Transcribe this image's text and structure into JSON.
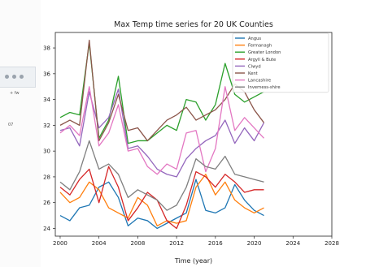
{
  "sidebar": {
    "label_1": "+ fw",
    "label_2": "07"
  },
  "chart_data": {
    "type": "line",
    "title": "Max Temp time series for 20 UK Counties",
    "xlabel": "Time (year)",
    "ylabel": "",
    "xlim": [
      1999.5,
      2028
    ],
    "ylim": [
      23.4,
      39.2
    ],
    "xticks": [
      2000,
      2004,
      2008,
      2012,
      2016,
      2020,
      2024,
      2028
    ],
    "yticks": [
      24,
      26,
      28,
      30,
      32,
      34,
      36,
      38
    ],
    "x": [
      2000,
      2001,
      2002,
      2003,
      2004,
      2005,
      2006,
      2007,
      2008,
      2009,
      2010,
      2011,
      2012,
      2013,
      2014,
      2015,
      2016,
      2017,
      2018,
      2019,
      2020,
      2021
    ],
    "legend_position": "top-right",
    "grid": false,
    "series": [
      {
        "name": "Angus",
        "color": "#1f77b4",
        "values": [
          25.0,
          24.6,
          25.6,
          25.8,
          27.2,
          27.6,
          26.4,
          24.2,
          24.8,
          24.6,
          24.0,
          24.4,
          24.8,
          25.2,
          27.8,
          25.4,
          25.2,
          25.6,
          27.4,
          26.2,
          25.4,
          25.0
        ]
      },
      {
        "name": "Fermanagh",
        "color": "#ff7f0e",
        "values": [
          26.8,
          26.0,
          26.4,
          27.6,
          27.0,
          25.6,
          25.2,
          24.8,
          26.4,
          25.8,
          24.2,
          24.6,
          24.4,
          24.6,
          27.2,
          28.2,
          26.6,
          27.6,
          26.2,
          25.6,
          25.2,
          25.6
        ]
      },
      {
        "name": "Greater London",
        "color": "#2ca02c",
        "values": [
          32.6,
          33.0,
          32.8,
          38.4,
          31.0,
          32.4,
          35.8,
          30.6,
          30.8,
          30.8,
          31.4,
          32.0,
          31.6,
          34.0,
          33.8,
          32.4,
          33.6,
          36.8,
          34.4,
          33.8,
          34.2,
          34.6
        ]
      },
      {
        "name": "Argyll & Bute",
        "color": "#d62728",
        "values": [
          27.2,
          26.6,
          27.8,
          28.6,
          26.0,
          28.8,
          27.2,
          24.6,
          25.6,
          26.8,
          26.2,
          24.6,
          24.0,
          25.8,
          28.4,
          28.0,
          27.2,
          28.2,
          27.6,
          26.8,
          27.0,
          27.0
        ]
      },
      {
        "name": "Clwyd",
        "color": "#9467bd",
        "values": [
          31.6,
          31.8,
          30.4,
          34.6,
          31.8,
          32.6,
          34.8,
          30.2,
          30.4,
          29.6,
          28.6,
          28.2,
          28.0,
          29.4,
          30.2,
          30.8,
          31.2,
          32.4,
          30.6,
          31.8,
          30.8,
          32.2
        ]
      },
      {
        "name": "Kent",
        "color": "#8c564b",
        "values": [
          32.0,
          32.4,
          32.0,
          38.6,
          30.8,
          32.2,
          34.4,
          31.6,
          31.8,
          30.8,
          31.6,
          32.4,
          32.8,
          33.4,
          32.4,
          32.8,
          33.2,
          34.0,
          35.2,
          34.6,
          33.2,
          32.2
        ]
      },
      {
        "name": "Lancashire",
        "color": "#e377c2",
        "values": [
          31.4,
          32.0,
          31.2,
          35.0,
          30.4,
          31.4,
          33.6,
          30.0,
          30.2,
          28.8,
          28.2,
          29.0,
          28.6,
          31.4,
          31.6,
          28.4,
          30.2,
          35.0,
          31.6,
          32.6,
          31.8,
          31.0
        ]
      },
      {
        "name": "Inverness-shire",
        "color": "#7f7f7f",
        "values": [
          27.6,
          27.0,
          28.4,
          30.8,
          28.6,
          29.0,
          28.2,
          26.4,
          27.0,
          26.6,
          26.2,
          25.4,
          25.8,
          27.2,
          29.4,
          28.8,
          28.6,
          29.6,
          28.2,
          28.0,
          27.8,
          27.6
        ]
      }
    ]
  }
}
